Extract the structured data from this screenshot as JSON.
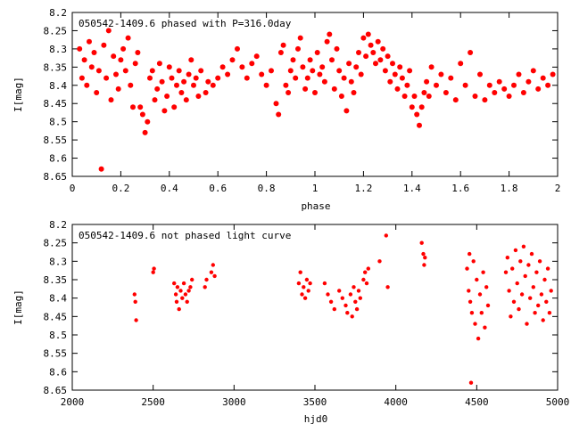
{
  "chart_data": [
    {
      "type": "scatter",
      "title": "050542-1409.6 phased with P=316.0day",
      "xlabel": "phase",
      "ylabel": "I[mag]",
      "xlim": [
        0,
        2
      ],
      "ylim": [
        8.65,
        8.2
      ],
      "y_inverted": true,
      "grid": false,
      "x_ticks": [
        "0",
        "0.2",
        "0.4",
        "0.6",
        "0.8",
        "1",
        "1.2",
        "1.4",
        "1.6",
        "1.8",
        "2"
      ],
      "y_ticks": [
        "8.2",
        "8.25",
        "8.3",
        "8.35",
        "8.4",
        "8.45",
        "8.5",
        "8.55",
        "8.6",
        "8.65"
      ],
      "marker_color": "#ff0000",
      "series": [
        {
          "points": [
            [
              0.03,
              8.3
            ],
            [
              0.04,
              8.38
            ],
            [
              0.05,
              8.33
            ],
            [
              0.06,
              8.4
            ],
            [
              0.07,
              8.28
            ],
            [
              0.08,
              8.35
            ],
            [
              0.09,
              8.31
            ],
            [
              0.1,
              8.42
            ],
            [
              0.11,
              8.36
            ],
            [
              0.12,
              8.63
            ],
            [
              0.13,
              8.29
            ],
            [
              0.14,
              8.38
            ],
            [
              0.15,
              8.25
            ],
            [
              0.16,
              8.44
            ],
            [
              0.17,
              8.32
            ],
            [
              0.18,
              8.37
            ],
            [
              0.19,
              8.41
            ],
            [
              0.2,
              8.33
            ],
            [
              0.21,
              8.3
            ],
            [
              0.22,
              8.36
            ],
            [
              0.23,
              8.27
            ],
            [
              0.24,
              8.4
            ],
            [
              0.25,
              8.46
            ],
            [
              0.26,
              8.34
            ],
            [
              0.27,
              8.31
            ],
            [
              0.28,
              8.46
            ],
            [
              0.29,
              8.48
            ],
            [
              0.3,
              8.53
            ],
            [
              0.31,
              8.5
            ],
            [
              0.32,
              8.38
            ],
            [
              0.33,
              8.36
            ],
            [
              0.34,
              8.44
            ],
            [
              0.35,
              8.41
            ],
            [
              0.36,
              8.34
            ],
            [
              0.37,
              8.39
            ],
            [
              0.38,
              8.47
            ],
            [
              0.39,
              8.43
            ],
            [
              0.4,
              8.35
            ],
            [
              0.41,
              8.38
            ],
            [
              0.42,
              8.46
            ],
            [
              0.43,
              8.4
            ],
            [
              0.44,
              8.36
            ],
            [
              0.45,
              8.42
            ],
            [
              0.46,
              8.39
            ],
            [
              0.47,
              8.44
            ],
            [
              0.48,
              8.37
            ],
            [
              0.49,
              8.33
            ],
            [
              0.5,
              8.4
            ],
            [
              0.51,
              8.38
            ],
            [
              0.52,
              8.43
            ],
            [
              0.53,
              8.36
            ],
            [
              0.55,
              8.42
            ],
            [
              0.56,
              8.39
            ],
            [
              0.58,
              8.4
            ],
            [
              0.6,
              8.38
            ],
            [
              0.62,
              8.35
            ],
            [
              0.64,
              8.37
            ],
            [
              0.66,
              8.33
            ],
            [
              0.68,
              8.3
            ],
            [
              0.7,
              8.35
            ],
            [
              0.72,
              8.38
            ],
            [
              0.74,
              8.34
            ],
            [
              0.76,
              8.32
            ],
            [
              0.78,
              8.37
            ],
            [
              0.8,
              8.4
            ],
            [
              0.82,
              8.36
            ],
            [
              0.84,
              8.45
            ],
            [
              0.85,
              8.48
            ],
            [
              0.86,
              8.31
            ],
            [
              0.87,
              8.29
            ],
            [
              0.88,
              8.4
            ],
            [
              0.89,
              8.42
            ],
            [
              0.9,
              8.36
            ],
            [
              0.91,
              8.33
            ],
            [
              0.92,
              8.38
            ],
            [
              0.93,
              8.3
            ],
            [
              0.94,
              8.27
            ],
            [
              0.95,
              8.35
            ],
            [
              0.96,
              8.41
            ],
            [
              0.97,
              8.38
            ],
            [
              0.98,
              8.33
            ],
            [
              0.99,
              8.36
            ],
            [
              1.0,
              8.42
            ],
            [
              1.01,
              8.31
            ],
            [
              1.02,
              8.37
            ],
            [
              1.03,
              8.35
            ],
            [
              1.04,
              8.39
            ],
            [
              1.05,
              8.28
            ],
            [
              1.06,
              8.26
            ],
            [
              1.07,
              8.33
            ],
            [
              1.08,
              8.41
            ],
            [
              1.09,
              8.3
            ],
            [
              1.1,
              8.36
            ],
            [
              1.11,
              8.43
            ],
            [
              1.12,
              8.38
            ],
            [
              1.13,
              8.47
            ],
            [
              1.14,
              8.34
            ],
            [
              1.15,
              8.39
            ],
            [
              1.16,
              8.42
            ],
            [
              1.17,
              8.35
            ],
            [
              1.18,
              8.31
            ],
            [
              1.19,
              8.37
            ],
            [
              1.2,
              8.27
            ],
            [
              1.21,
              8.32
            ],
            [
              1.22,
              8.26
            ],
            [
              1.23,
              8.29
            ],
            [
              1.24,
              8.31
            ],
            [
              1.25,
              8.34
            ],
            [
              1.26,
              8.28
            ],
            [
              1.27,
              8.33
            ],
            [
              1.28,
              8.3
            ],
            [
              1.29,
              8.36
            ],
            [
              1.3,
              8.32
            ],
            [
              1.31,
              8.39
            ],
            [
              1.32,
              8.34
            ],
            [
              1.33,
              8.37
            ],
            [
              1.34,
              8.41
            ],
            [
              1.35,
              8.35
            ],
            [
              1.36,
              8.38
            ],
            [
              1.37,
              8.43
            ],
            [
              1.38,
              8.4
            ],
            [
              1.39,
              8.36
            ],
            [
              1.4,
              8.46
            ],
            [
              1.41,
              8.43
            ],
            [
              1.42,
              8.48
            ],
            [
              1.43,
              8.51
            ],
            [
              1.44,
              8.46
            ],
            [
              1.45,
              8.42
            ],
            [
              1.46,
              8.39
            ],
            [
              1.47,
              8.43
            ],
            [
              1.48,
              8.35
            ],
            [
              1.5,
              8.4
            ],
            [
              1.52,
              8.37
            ],
            [
              1.54,
              8.42
            ],
            [
              1.56,
              8.38
            ],
            [
              1.58,
              8.44
            ],
            [
              1.6,
              8.34
            ],
            [
              1.62,
              8.4
            ],
            [
              1.64,
              8.31
            ],
            [
              1.66,
              8.43
            ],
            [
              1.68,
              8.37
            ],
            [
              1.7,
              8.44
            ],
            [
              1.72,
              8.4
            ],
            [
              1.74,
              8.42
            ],
            [
              1.76,
              8.39
            ],
            [
              1.78,
              8.41
            ],
            [
              1.8,
              8.43
            ],
            [
              1.82,
              8.4
            ],
            [
              1.84,
              8.37
            ],
            [
              1.86,
              8.42
            ],
            [
              1.88,
              8.39
            ],
            [
              1.9,
              8.36
            ],
            [
              1.92,
              8.41
            ],
            [
              1.94,
              8.38
            ],
            [
              1.96,
              8.4
            ],
            [
              1.98,
              8.37
            ]
          ]
        }
      ]
    },
    {
      "type": "scatter",
      "title": "050542-1409.6 not phased light curve",
      "xlabel": "hjd0",
      "ylabel": "I[mag]",
      "xlim": [
        2000,
        5000
      ],
      "ylim": [
        8.65,
        8.2
      ],
      "y_inverted": true,
      "grid": false,
      "x_ticks": [
        "2000",
        "2500",
        "3000",
        "3500",
        "4000",
        "4500",
        "5000"
      ],
      "y_ticks": [
        "8.2",
        "8.25",
        "8.3",
        "8.35",
        "8.4",
        "8.45",
        "8.5",
        "8.55",
        "8.6",
        "8.65"
      ],
      "marker_color": "#ff0000",
      "series": [
        {
          "points": [
            [
              2385,
              8.39
            ],
            [
              2390,
              8.41
            ],
            [
              2395,
              8.46
            ],
            [
              2500,
              8.33
            ],
            [
              2505,
              8.32
            ],
            [
              2630,
              8.36
            ],
            [
              2640,
              8.39
            ],
            [
              2645,
              8.41
            ],
            [
              2650,
              8.37
            ],
            [
              2660,
              8.43
            ],
            [
              2670,
              8.38
            ],
            [
              2680,
              8.4
            ],
            [
              2690,
              8.36
            ],
            [
              2700,
              8.39
            ],
            [
              2710,
              8.41
            ],
            [
              2720,
              8.38
            ],
            [
              2730,
              8.37
            ],
            [
              2740,
              8.35
            ],
            [
              2820,
              8.37
            ],
            [
              2830,
              8.35
            ],
            [
              2860,
              8.33
            ],
            [
              2870,
              8.31
            ],
            [
              2880,
              8.34
            ],
            [
              3400,
              8.36
            ],
            [
              3410,
              8.33
            ],
            [
              3420,
              8.39
            ],
            [
              3430,
              8.37
            ],
            [
              3440,
              8.4
            ],
            [
              3450,
              8.35
            ],
            [
              3460,
              8.38
            ],
            [
              3470,
              8.36
            ],
            [
              3560,
              8.36
            ],
            [
              3580,
              8.39
            ],
            [
              3600,
              8.41
            ],
            [
              3620,
              8.43
            ],
            [
              3650,
              8.38
            ],
            [
              3670,
              8.4
            ],
            [
              3690,
              8.42
            ],
            [
              3700,
              8.44
            ],
            [
              3720,
              8.39
            ],
            [
              3730,
              8.45
            ],
            [
              3740,
              8.37
            ],
            [
              3750,
              8.41
            ],
            [
              3760,
              8.43
            ],
            [
              3770,
              8.38
            ],
            [
              3780,
              8.4
            ],
            [
              3800,
              8.35
            ],
            [
              3810,
              8.33
            ],
            [
              3820,
              8.36
            ],
            [
              3830,
              8.32
            ],
            [
              3900,
              8.3
            ],
            [
              3940,
              8.23
            ],
            [
              3950,
              8.37
            ],
            [
              4160,
              8.25
            ],
            [
              4170,
              8.28
            ],
            [
              4175,
              8.31
            ],
            [
              4180,
              8.29
            ],
            [
              4440,
              8.32
            ],
            [
              4450,
              8.38
            ],
            [
              4455,
              8.28
            ],
            [
              4460,
              8.41
            ],
            [
              4465,
              8.63
            ],
            [
              4470,
              8.44
            ],
            [
              4480,
              8.3
            ],
            [
              4490,
              8.47
            ],
            [
              4500,
              8.35
            ],
            [
              4510,
              8.51
            ],
            [
              4520,
              8.39
            ],
            [
              4530,
              8.44
            ],
            [
              4540,
              8.33
            ],
            [
              4550,
              8.48
            ],
            [
              4560,
              8.37
            ],
            [
              4570,
              8.42
            ],
            [
              4680,
              8.33
            ],
            [
              4690,
              8.29
            ],
            [
              4700,
              8.38
            ],
            [
              4710,
              8.45
            ],
            [
              4720,
              8.32
            ],
            [
              4730,
              8.41
            ],
            [
              4740,
              8.27
            ],
            [
              4750,
              8.36
            ],
            [
              4760,
              8.43
            ],
            [
              4770,
              8.3
            ],
            [
              4780,
              8.39
            ],
            [
              4790,
              8.26
            ],
            [
              4800,
              8.34
            ],
            [
              4810,
              8.47
            ],
            [
              4820,
              8.31
            ],
            [
              4830,
              8.4
            ],
            [
              4840,
              8.28
            ],
            [
              4850,
              8.37
            ],
            [
              4860,
              8.44
            ],
            [
              4870,
              8.33
            ],
            [
              4880,
              8.42
            ],
            [
              4890,
              8.3
            ],
            [
              4900,
              8.39
            ],
            [
              4910,
              8.46
            ],
            [
              4920,
              8.35
            ],
            [
              4930,
              8.41
            ],
            [
              4940,
              8.32
            ],
            [
              4950,
              8.44
            ],
            [
              4960,
              8.38
            ]
          ]
        }
      ]
    }
  ]
}
